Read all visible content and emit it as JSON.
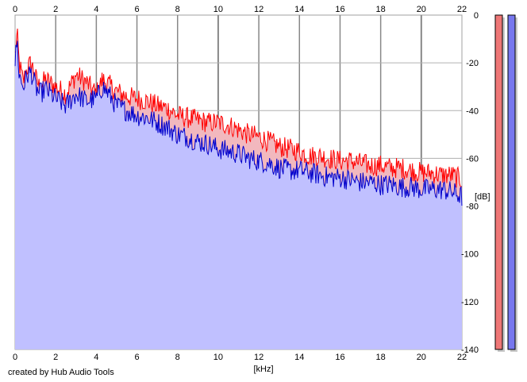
{
  "chart_data": {
    "type": "area",
    "xlabel": "[kHz]",
    "ylabel": "[dB]",
    "xlim": [
      0,
      22
    ],
    "ylim": [
      -140,
      0
    ],
    "x_ticks": [
      0,
      2,
      4,
      6,
      8,
      10,
      12,
      14,
      16,
      18,
      20,
      22
    ],
    "y_ticks": [
      0,
      -20,
      -40,
      -60,
      -80,
      -100,
      -120,
      -140
    ],
    "grid": true,
    "series": [
      {
        "color": "#ff0000",
        "fill": "#f2b8be",
        "x": [
          0,
          0.1,
          0.2,
          0.4,
          0.6,
          0.8,
          1.0,
          1.2,
          1.5,
          2.0,
          2.5,
          3.0,
          3.5,
          4.0,
          4.3,
          4.6,
          5.0,
          5.5,
          6.0,
          6.5,
          7.0,
          7.5,
          8.0,
          8.5,
          9.0,
          9.5,
          10.0,
          10.5,
          11.0,
          11.5,
          12.0,
          12.5,
          13.0,
          13.5,
          14.0,
          14.5,
          15.0,
          15.5,
          16.0,
          16.5,
          17.0,
          17.5,
          18.0,
          18.5,
          19.0,
          19.5,
          20.0,
          20.5,
          21.0,
          21.5,
          22.0
        ],
        "y": [
          -17,
          -8,
          -20,
          -28,
          -22,
          -20,
          -26,
          -30,
          -27,
          -30,
          -33,
          -25,
          -28,
          -33,
          -27,
          -29,
          -32,
          -34,
          -35,
          -36,
          -38,
          -39,
          -42,
          -43,
          -44,
          -45,
          -45,
          -46,
          -48,
          -50,
          -51,
          -53,
          -55,
          -56,
          -57,
          -59,
          -59,
          -60,
          -61,
          -61,
          -62,
          -63,
          -63,
          -64,
          -64,
          -65,
          -66,
          -66,
          -67,
          -67,
          -69
        ]
      },
      {
        "color": "#0000cc",
        "fill": "#c0c0ff",
        "x": [
          0,
          0.1,
          0.2,
          0.4,
          0.6,
          0.8,
          1.0,
          1.2,
          1.5,
          2.0,
          2.5,
          3.0,
          3.5,
          4.0,
          4.3,
          4.6,
          5.0,
          5.5,
          6.0,
          6.5,
          7.0,
          7.5,
          8.0,
          8.5,
          9.0,
          9.5,
          10.0,
          10.5,
          11.0,
          11.5,
          12.0,
          12.5,
          13.0,
          13.5,
          14.0,
          14.5,
          15.0,
          15.5,
          16.0,
          16.5,
          17.0,
          17.5,
          18.0,
          18.5,
          19.0,
          19.5,
          20.0,
          20.5,
          21.0,
          21.5,
          22.0
        ],
        "y": [
          -20,
          -10,
          -25,
          -30,
          -25,
          -24,
          -30,
          -33,
          -31,
          -35,
          -38,
          -33,
          -36,
          -35,
          -30,
          -33,
          -38,
          -40,
          -42,
          -43,
          -45,
          -47,
          -50,
          -51,
          -53,
          -54,
          -56,
          -57,
          -58,
          -60,
          -61,
          -62,
          -64,
          -65,
          -65,
          -66,
          -67,
          -68,
          -68,
          -69,
          -70,
          -70,
          -71,
          -71,
          -72,
          -72,
          -73,
          -73,
          -73,
          -74,
          -76
        ]
      }
    ],
    "meters": [
      {
        "color": "#ee7777",
        "level": 1.0
      },
      {
        "color": "#7777ee",
        "level": 1.0
      }
    ]
  },
  "credit": "created by Hub Audio Tools"
}
